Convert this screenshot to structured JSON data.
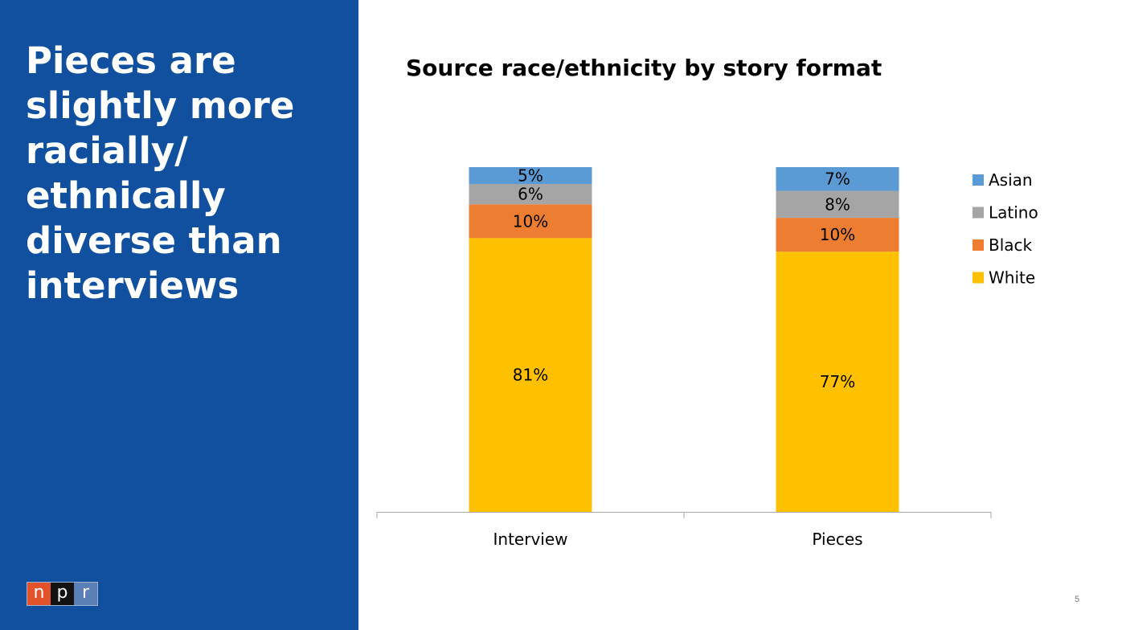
{
  "headline": "Pieces are slightly more racially/ ethnically diverse than interviews",
  "logo": {
    "letters": [
      "n",
      "p",
      "r"
    ],
    "colors": [
      "#e2532b",
      "#121212",
      "#5a80b5"
    ]
  },
  "page_number": "5",
  "colors": {
    "panel": "#11509e"
  },
  "chart_data": {
    "type": "bar",
    "stacked": true,
    "title": "Source race/ethnicity by story format",
    "categories": [
      "Interview",
      "Pieces"
    ],
    "series": [
      {
        "name": "White",
        "values": [
          81,
          77
        ],
        "labels": [
          "81%",
          "77%"
        ],
        "color": "#ffc000"
      },
      {
        "name": "Black",
        "values": [
          10,
          10
        ],
        "labels": [
          "10%",
          "10%"
        ],
        "color": "#ed7d31"
      },
      {
        "name": "Latino",
        "values": [
          6,
          8
        ],
        "labels": [
          "6%",
          "8%"
        ],
        "color": "#a5a5a5"
      },
      {
        "name": "Asian",
        "values": [
          5,
          7
        ],
        "labels": [
          "5%",
          "7%"
        ],
        "color": "#5b9bd5"
      }
    ],
    "legend_order": [
      "Asian",
      "Latino",
      "Black",
      "White"
    ],
    "legend_position": "right",
    "ylim": [
      0,
      102
    ],
    "y_axis_shown": false,
    "grid": false
  }
}
